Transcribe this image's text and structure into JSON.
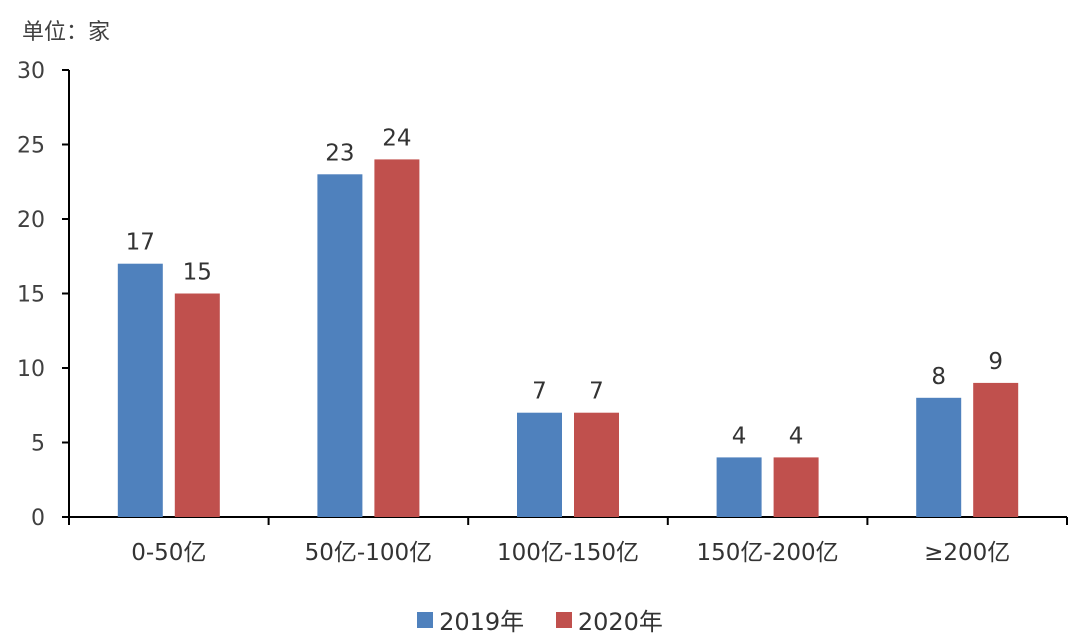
{
  "unit_label": "单位：家",
  "chart_data": {
    "type": "bar",
    "title": "",
    "xlabel": "",
    "ylabel": "",
    "categories": [
      "0-50亿",
      "50亿-100亿",
      "100亿-150亿",
      "150亿-200亿",
      "≥200亿"
    ],
    "series": [
      {
        "name": "2019年",
        "values": [
          17,
          23,
          7,
          4,
          8
        ],
        "color": "#4F81BD"
      },
      {
        "name": "2020年",
        "values": [
          15,
          24,
          7,
          4,
          9
        ],
        "color": "#C0504D"
      }
    ],
    "ylim": [
      0,
      30
    ],
    "yticks": [
      0,
      5,
      10,
      15,
      20,
      25,
      30
    ],
    "grid": false,
    "legend_position": "bottom",
    "data_labels": true
  }
}
